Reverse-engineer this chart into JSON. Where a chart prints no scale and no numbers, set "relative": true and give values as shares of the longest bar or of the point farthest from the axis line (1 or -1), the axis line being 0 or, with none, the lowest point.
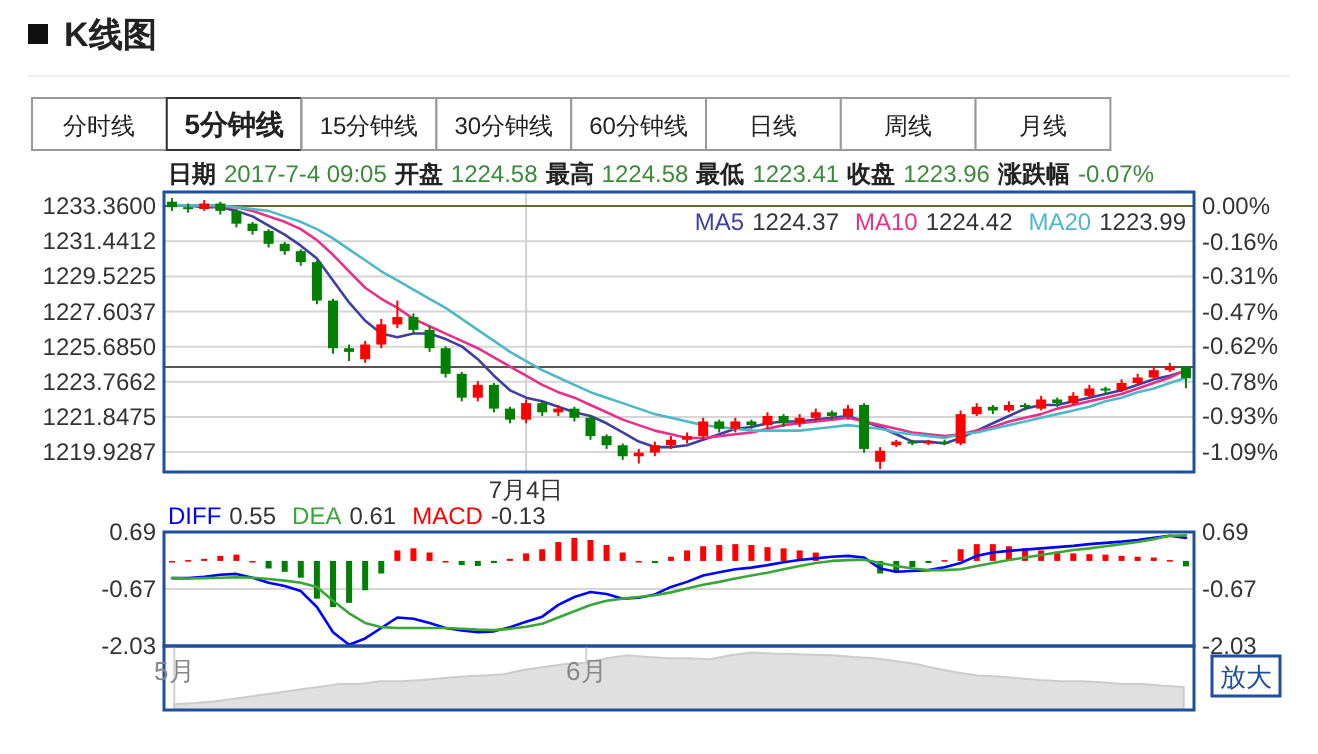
{
  "chart_data": [
    {
      "type": "candlestick",
      "title": "K线图",
      "annotations": [
        "分时线",
        "5分钟线",
        "15分钟线",
        "30分钟线",
        "60分钟线",
        "日线",
        "周线",
        "月线",
        "日期",
        "2017-7-4 09:05",
        "开盘",
        "1224.58",
        "最高",
        "1224.58",
        "最低",
        "1223.41",
        "收盘",
        "1223.96",
        "涨跌幅",
        "-0.07%",
        "1224.37",
        "1224.42",
        "1223.99"
      ],
      "categories": [
        null,
        null,
        null,
        null,
        null,
        null,
        null,
        null,
        null,
        null,
        null,
        null,
        null,
        null,
        null,
        null,
        null,
        null,
        null,
        null,
        null,
        null,
        "7月4日",
        null,
        null,
        null,
        null,
        null,
        null,
        null,
        null,
        null,
        null,
        null,
        null,
        null,
        null,
        null,
        null,
        null,
        null,
        null,
        null,
        null,
        null,
        null,
        null,
        null,
        null,
        null,
        null,
        null,
        null,
        null,
        null,
        null,
        null,
        null,
        null,
        null,
        null,
        null,
        null,
        null
      ],
      "ohlc": [
        [
          1233.6,
          1233.8,
          1233.1,
          1233.3
        ],
        [
          1233.3,
          1233.5,
          1233.0,
          1233.2
        ],
        [
          1233.2,
          1233.7,
          1233.1,
          1233.5
        ],
        [
          1233.5,
          1233.6,
          1232.9,
          1233.1
        ],
        [
          1233.1,
          1233.2,
          1232.2,
          1232.4
        ],
        [
          1232.4,
          1232.5,
          1231.8,
          1232.0
        ],
        [
          1232.0,
          1232.1,
          1231.1,
          1231.3
        ],
        [
          1231.3,
          1231.4,
          1230.7,
          1230.9
        ],
        [
          1230.9,
          1231.0,
          1230.1,
          1230.3
        ],
        [
          1230.3,
          1230.4,
          1228.0,
          1228.2
        ],
        [
          1228.2,
          1228.3,
          1225.3,
          1225.6
        ],
        [
          1225.6,
          1225.8,
          1224.9,
          1225.4
        ],
        [
          1225.0,
          1226.0,
          1224.8,
          1225.8
        ],
        [
          1225.8,
          1227.2,
          1225.6,
          1226.9
        ],
        [
          1226.9,
          1228.2,
          1226.7,
          1227.3
        ],
        [
          1227.3,
          1227.5,
          1226.4,
          1226.6
        ],
        [
          1226.6,
          1226.8,
          1225.4,
          1225.6
        ],
        [
          1225.6,
          1225.7,
          1224.0,
          1224.2
        ],
        [
          1224.2,
          1224.3,
          1222.7,
          1222.9
        ],
        [
          1222.9,
          1223.8,
          1222.7,
          1223.6
        ],
        [
          1223.6,
          1223.7,
          1222.1,
          1222.3
        ],
        [
          1222.3,
          1222.4,
          1221.5,
          1221.7
        ],
        [
          1221.7,
          1222.8,
          1221.5,
          1222.6
        ],
        [
          1222.6,
          1222.7,
          1221.9,
          1222.1
        ],
        [
          1222.1,
          1222.5,
          1221.9,
          1222.3
        ],
        [
          1222.3,
          1222.4,
          1221.6,
          1221.8
        ],
        [
          1221.8,
          1221.9,
          1220.6,
          1220.8
        ],
        [
          1220.8,
          1220.9,
          1220.1,
          1220.3
        ],
        [
          1220.3,
          1220.4,
          1219.5,
          1219.7
        ],
        [
          1219.7,
          1220.1,
          1219.3,
          1219.9
        ],
        [
          1219.9,
          1220.5,
          1219.7,
          1220.3
        ],
        [
          1220.3,
          1220.8,
          1220.1,
          1220.6
        ],
        [
          1220.6,
          1221.0,
          1220.4,
          1220.8
        ],
        [
          1220.8,
          1221.8,
          1220.6,
          1221.6
        ],
        [
          1221.6,
          1221.7,
          1221.0,
          1221.2
        ],
        [
          1221.2,
          1221.8,
          1221.0,
          1221.6
        ],
        [
          1221.6,
          1221.7,
          1221.2,
          1221.4
        ],
        [
          1221.4,
          1222.1,
          1221.2,
          1221.9
        ],
        [
          1221.9,
          1222.0,
          1221.3,
          1221.5
        ],
        [
          1221.5,
          1222.0,
          1221.3,
          1221.8
        ],
        [
          1221.8,
          1222.3,
          1221.6,
          1222.1
        ],
        [
          1222.1,
          1222.2,
          1221.7,
          1221.9
        ],
        [
          1221.9,
          1222.5,
          1221.7,
          1222.3
        ],
        [
          1222.5,
          1222.6,
          1219.9,
          1220.1
        ],
        [
          1219.4,
          1220.2,
          1219.0,
          1220.0
        ],
        [
          1220.3,
          1220.6,
          1220.2,
          1220.5
        ],
        [
          1220.5,
          1220.6,
          1220.3,
          1220.4
        ],
        [
          1220.4,
          1220.6,
          1220.3,
          1220.5
        ],
        [
          1220.5,
          1220.6,
          1220.3,
          1220.4
        ],
        [
          1220.4,
          1222.2,
          1220.3,
          1222.0
        ],
        [
          1222.0,
          1222.6,
          1221.9,
          1222.4
        ],
        [
          1222.4,
          1222.5,
          1222.0,
          1222.2
        ],
        [
          1222.2,
          1222.7,
          1222.1,
          1222.5
        ],
        [
          1222.5,
          1222.6,
          1222.2,
          1222.4
        ],
        [
          1222.3,
          1223.0,
          1222.2,
          1222.8
        ],
        [
          1222.8,
          1222.9,
          1222.4,
          1222.6
        ],
        [
          1222.6,
          1223.2,
          1222.5,
          1223.0
        ],
        [
          1223.0,
          1223.6,
          1222.9,
          1223.4
        ],
        [
          1223.4,
          1223.5,
          1223.1,
          1223.3
        ],
        [
          1223.3,
          1223.9,
          1223.2,
          1223.7
        ],
        [
          1223.7,
          1224.2,
          1223.6,
          1224.0
        ],
        [
          1224.0,
          1224.6,
          1223.9,
          1224.4
        ],
        [
          1224.4,
          1224.8,
          1224.3,
          1224.6
        ],
        [
          1224.58,
          1224.58,
          1223.41,
          1223.96
        ]
      ],
      "colors": [
        "#008000",
        "#008000",
        "#ff0000",
        "#008000",
        "#008000",
        "#008000",
        "#008000",
        "#008000",
        "#008000",
        "#008000",
        "#008000",
        "#008000",
        "#ff0000",
        "#ff0000",
        "#ff0000",
        "#008000",
        "#008000",
        "#008000",
        "#008000",
        "#ff0000",
        "#008000",
        "#008000",
        "#ff0000",
        "#008000",
        "#ff0000",
        "#008000",
        "#008000",
        "#008000",
        "#008000",
        "#ff0000",
        "#ff0000",
        "#ff0000",
        "#ff0000",
        "#ff0000",
        "#008000",
        "#ff0000",
        "#008000",
        "#ff0000",
        "#008000",
        "#ff0000",
        "#ff0000",
        "#008000",
        "#ff0000",
        "#008000",
        "#ff0000",
        "#ff0000",
        "#008000",
        "#ff0000",
        "#008000",
        "#ff0000",
        "#ff0000",
        "#008000",
        "#ff0000",
        "#008000",
        "#ff0000",
        "#008000",
        "#ff0000",
        "#ff0000",
        "#008000",
        "#ff0000",
        "#ff0000",
        "#ff0000",
        "#ff0000",
        "#008000"
      ],
      "series": [
        {
          "name": "MA5",
          "type": "line",
          "color": "#3f3f9f",
          "values": [
            1233.4,
            1233.4,
            1233.3,
            1233.3,
            1233.1,
            1232.8,
            1232.3,
            1231.8,
            1231.2,
            1230.5,
            1229.3,
            1228.1,
            1227.1,
            1226.4,
            1226.2,
            1226.4,
            1226.4,
            1226.1,
            1225.7,
            1225.0,
            1224.1,
            1223.3,
            1222.9,
            1222.7,
            1222.4,
            1222.1,
            1221.9,
            1221.5,
            1221.0,
            1220.5,
            1220.2,
            1220.2,
            1220.3,
            1220.6,
            1220.9,
            1221.2,
            1221.3,
            1221.5,
            1221.6,
            1221.6,
            1221.7,
            1221.8,
            1221.9,
            1221.6,
            1221.3,
            1220.9,
            1220.5,
            1220.5,
            1220.4,
            1220.7,
            1221.1,
            1221.5,
            1221.9,
            1222.3,
            1222.5,
            1222.5,
            1222.7,
            1222.9,
            1223.1,
            1223.3,
            1223.6,
            1223.9,
            1224.1,
            1224.37
          ]
        },
        {
          "name": "MA10",
          "type": "line",
          "color": "#e6308a",
          "values": [
            1233.4,
            1233.4,
            1233.4,
            1233.3,
            1233.3,
            1233.1,
            1232.8,
            1232.5,
            1232.1,
            1231.5,
            1230.7,
            1229.8,
            1228.9,
            1228.3,
            1227.8,
            1227.2,
            1226.8,
            1226.4,
            1226.0,
            1225.6,
            1225.1,
            1224.6,
            1224.1,
            1223.6,
            1223.2,
            1222.9,
            1222.5,
            1222.1,
            1221.7,
            1221.4,
            1221.1,
            1220.9,
            1220.7,
            1220.7,
            1220.8,
            1220.9,
            1221.0,
            1221.2,
            1221.4,
            1221.5,
            1221.6,
            1221.7,
            1221.8,
            1221.6,
            1221.4,
            1221.2,
            1221.0,
            1220.9,
            1220.8,
            1220.9,
            1221.1,
            1221.3,
            1221.6,
            1221.8,
            1222.0,
            1222.3,
            1222.5,
            1222.7,
            1222.9,
            1223.1,
            1223.4,
            1223.7,
            1224.0,
            1224.42
          ]
        },
        {
          "name": "MA20",
          "type": "line",
          "color": "#4fb8c8",
          "values": [
            1233.4,
            1233.4,
            1233.4,
            1233.4,
            1233.3,
            1233.2,
            1233.1,
            1232.8,
            1232.5,
            1232.1,
            1231.6,
            1231.0,
            1230.4,
            1229.8,
            1229.3,
            1228.8,
            1228.3,
            1227.8,
            1227.2,
            1226.6,
            1226.0,
            1225.4,
            1224.9,
            1224.4,
            1224.0,
            1223.6,
            1223.2,
            1222.9,
            1222.6,
            1222.3,
            1222.0,
            1221.8,
            1221.6,
            1221.4,
            1221.3,
            1221.2,
            1221.1,
            1221.1,
            1221.1,
            1221.1,
            1221.2,
            1221.3,
            1221.4,
            1221.3,
            1221.2,
            1221.0,
            1220.9,
            1220.8,
            1220.7,
            1220.9,
            1221.0,
            1221.2,
            1221.4,
            1221.6,
            1221.8,
            1222.0,
            1222.2,
            1222.4,
            1222.7,
            1222.9,
            1223.2,
            1223.4,
            1223.7,
            1223.99
          ]
        }
      ],
      "ylim": [
        1218.84,
        1234.13
      ],
      "yticks": [
        {
          "value": 1233.36,
          "label": "1233.3600"
        },
        {
          "value": 1231.4412,
          "label": "1231.4412"
        },
        {
          "value": 1229.5225,
          "label": "1229.5225"
        },
        {
          "value": 1227.6037,
          "label": "1227.6037"
        },
        {
          "value": 1225.685,
          "label": "1225.6850"
        },
        {
          "value": 1223.7662,
          "label": "1223.7662"
        },
        {
          "value": 1221.8475,
          "label": "1221.8475"
        },
        {
          "value": 1219.9287,
          "label": "1219.9287"
        }
      ],
      "y2lim": [
        -1.178,
        0.062
      ],
      "y2ticks": [
        {
          "value": 0,
          "label": "0.00%"
        },
        {
          "value": -0.16,
          "label": "-0.16%"
        },
        {
          "value": -0.31,
          "label": "-0.31%"
        },
        {
          "value": -0.47,
          "label": "-0.47%"
        },
        {
          "value": -0.62,
          "label": "-0.62%"
        },
        {
          "value": -0.78,
          "label": "-0.78%"
        },
        {
          "value": -0.93,
          "label": "-0.93%"
        },
        {
          "value": -1.09,
          "label": "-1.09%"
        }
      ],
      "ref_lines": [
        {
          "axis": "y",
          "value": 1233.36,
          "color": "#666633"
        },
        {
          "axis": "y",
          "value": 1224.58,
          "color": "#555555"
        }
      ],
      "grid": true,
      "legend": "top right"
    },
    {
      "type": "line",
      "annotations": [
        "0.55",
        "0.61",
        "-0.13"
      ],
      "categories": [
        null,
        null,
        null,
        null,
        null,
        null,
        null,
        null,
        null,
        null,
        null,
        null,
        null,
        null,
        null,
        null,
        null,
        null,
        null,
        null,
        null,
        null,
        null,
        null,
        null,
        null,
        null,
        null,
        null,
        null,
        null,
        null,
        null,
        null,
        null,
        null,
        null,
        null,
        null,
        null,
        null,
        null,
        null,
        null,
        null,
        null,
        null,
        null,
        null,
        null,
        null,
        null,
        null,
        null,
        null,
        null,
        null,
        null,
        null,
        null,
        null,
        null,
        null,
        null
      ],
      "series": [
        {
          "name": "DIFF",
          "type": "line",
          "color": "#0000ff",
          "values": [
            -0.41,
            -0.41,
            -0.38,
            -0.33,
            -0.31,
            -0.4,
            -0.52,
            -0.6,
            -0.72,
            -1.1,
            -1.7,
            -2.0,
            -1.85,
            -1.6,
            -1.35,
            -1.38,
            -1.48,
            -1.6,
            -1.66,
            -1.7,
            -1.68,
            -1.58,
            -1.45,
            -1.33,
            -1.05,
            -0.86,
            -0.74,
            -0.79,
            -0.9,
            -0.88,
            -0.8,
            -0.62,
            -0.5,
            -0.35,
            -0.27,
            -0.2,
            -0.16,
            -0.1,
            -0.03,
            0.02,
            0.06,
            0.1,
            0.12,
            0.08,
            -0.18,
            -0.26,
            -0.24,
            -0.22,
            -0.15,
            -0.05,
            0.12,
            0.2,
            0.24,
            0.27,
            0.3,
            0.33,
            0.36,
            0.4,
            0.43,
            0.46,
            0.5,
            0.55,
            0.6,
            0.55
          ]
        },
        {
          "name": "DEA",
          "type": "line",
          "color": "#3aa63a",
          "values": [
            -0.41,
            -0.42,
            -0.41,
            -0.4,
            -0.39,
            -0.4,
            -0.43,
            -0.47,
            -0.52,
            -0.62,
            -0.95,
            -1.25,
            -1.48,
            -1.58,
            -1.6,
            -1.6,
            -1.6,
            -1.6,
            -1.62,
            -1.64,
            -1.65,
            -1.62,
            -1.57,
            -1.5,
            -1.35,
            -1.2,
            -1.05,
            -0.95,
            -0.9,
            -0.86,
            -0.82,
            -0.75,
            -0.66,
            -0.57,
            -0.5,
            -0.42,
            -0.35,
            -0.28,
            -0.2,
            -0.12,
            -0.05,
            0.0,
            0.02,
            0.03,
            -0.05,
            -0.12,
            -0.18,
            -0.22,
            -0.22,
            -0.2,
            -0.12,
            -0.05,
            0.02,
            0.08,
            0.14,
            0.2,
            0.26,
            0.3,
            0.35,
            0.4,
            0.45,
            0.52,
            0.6,
            0.61
          ]
        },
        {
          "name": "MACD",
          "type": "bar",
          "color": "#ff0000",
          "values": [
            0.0,
            0.02,
            0.05,
            0.12,
            0.15,
            0.0,
            -0.18,
            -0.26,
            -0.4,
            -0.9,
            -1.1,
            -1.0,
            -0.7,
            -0.3,
            0.25,
            0.3,
            0.2,
            0.0,
            -0.1,
            -0.12,
            -0.05,
            0.05,
            0.18,
            0.28,
            0.45,
            0.55,
            0.5,
            0.38,
            0.2,
            0.0,
            -0.05,
            0.1,
            0.25,
            0.35,
            0.38,
            0.4,
            0.38,
            0.33,
            0.3,
            0.25,
            0.2,
            null,
            null,
            null,
            -0.3,
            -0.28,
            -0.15,
            -0.05,
            0.02,
            0.28,
            0.4,
            0.4,
            0.35,
            0.3,
            0.25,
            0.22,
            0.18,
            0.16,
            0.15,
            0.12,
            0.1,
            0.08,
            0.02,
            -0.13
          ],
          "colors": [
            "#ff0000",
            "#ff0000",
            "#ff0000",
            "#ff0000",
            "#ff0000",
            "#ff0000",
            "#008000",
            "#008000",
            "#008000",
            "#008000",
            "#008000",
            "#008000",
            "#008000",
            "#008000",
            "#ff0000",
            "#ff0000",
            "#ff0000",
            "#ff0000",
            "#008000",
            "#008000",
            "#008000",
            "#ff0000",
            "#ff0000",
            "#ff0000",
            "#ff0000",
            "#ff0000",
            "#ff0000",
            "#ff0000",
            "#ff0000",
            "#ff0000",
            "#008000",
            "#ff0000",
            "#ff0000",
            "#ff0000",
            "#ff0000",
            "#ff0000",
            "#ff0000",
            "#ff0000",
            "#ff0000",
            "#ff0000",
            "#ff0000",
            null,
            null,
            null,
            "#008000",
            "#008000",
            "#008000",
            "#008000",
            "#ff0000",
            "#ff0000",
            "#ff0000",
            "#ff0000",
            "#ff0000",
            "#ff0000",
            "#ff0000",
            "#ff0000",
            "#ff0000",
            "#ff0000",
            "#ff0000",
            "#ff0000",
            "#ff0000",
            "#ff0000",
            "#ff0000",
            "#008000"
          ]
        }
      ],
      "ylim": [
        -2.03,
        0.69
      ],
      "yticks": [
        0.69,
        -0.67,
        -2.03
      ],
      "y2lim": [
        -2.03,
        0.69
      ],
      "y2ticks": [
        0.69,
        -0.67,
        -2.03
      ],
      "grid": "y",
      "legend": "top left",
      "tick_labels": "y"
    },
    {
      "type": "area",
      "relative": true,
      "annotations": [
        "放大"
      ],
      "categories": [
        "5月",
        null,
        null,
        null,
        null,
        null,
        null,
        null,
        null,
        null,
        null,
        null,
        null,
        null,
        null,
        null,
        null,
        null,
        null,
        null,
        "6月",
        null,
        null,
        null,
        null,
        null,
        null,
        null,
        null,
        null,
        null,
        null,
        null,
        null,
        null,
        null,
        null,
        null,
        null,
        null,
        null,
        null,
        null,
        null,
        null,
        null,
        null,
        null,
        null,
        null
      ],
      "series": [
        {
          "color": "#e0e0e0",
          "values": [
            0.1,
            0.12,
            0.15,
            0.2,
            0.25,
            0.3,
            0.35,
            0.4,
            0.45,
            0.45,
            0.5,
            0.5,
            0.52,
            0.55,
            0.58,
            0.6,
            0.62,
            0.7,
            0.75,
            0.8,
            0.82,
            0.9,
            0.95,
            0.92,
            0.9,
            0.9,
            0.88,
            0.95,
            1.0,
            0.98,
            0.97,
            0.96,
            0.95,
            0.92,
            0.9,
            0.85,
            0.8,
            0.72,
            0.65,
            0.6,
            0.58,
            0.55,
            0.52,
            0.5,
            0.5,
            0.48,
            0.45,
            0.45,
            0.42,
            0.4
          ]
        }
      ],
      "grid": "x"
    }
  ]
}
